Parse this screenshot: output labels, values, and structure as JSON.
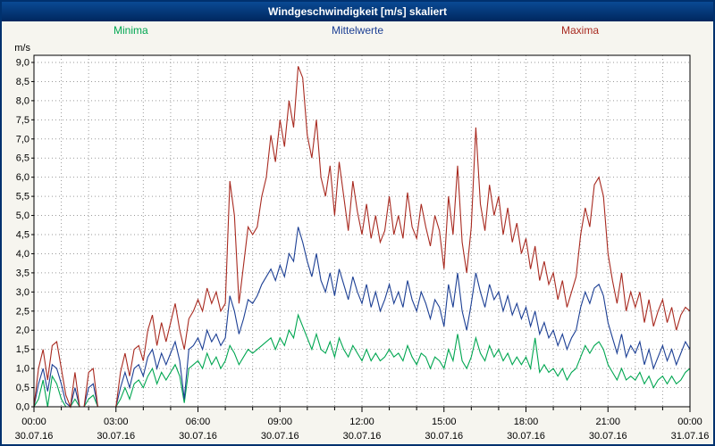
{
  "window": {
    "title": "Windgeschwindigkeit [m/s] skaliert"
  },
  "colors": {
    "title_bar": "#00316e",
    "title_text": "#ffffff",
    "window_bg": "#f6f5ef",
    "plot_bg": "#ffffff",
    "plot_border": "#000000",
    "grid": "#9a9a9a",
    "axis_text": "#000000"
  },
  "chart_data": {
    "type": "line",
    "title": "Windgeschwindigkeit [m/s] skaliert",
    "ylabel": "m/s",
    "ylim": [
      0,
      9
    ],
    "ytick_step": 0.5,
    "decimal_comma": true,
    "x_hours_total": 24,
    "x_step_minutes": 10,
    "grid": "dotted; horizontal every 0.5 m/s, vertical every hour",
    "legend_position": "top",
    "xticks": [
      {
        "time": "00:00",
        "date": "30.07.16"
      },
      {
        "time": "03:00",
        "date": "30.07.16"
      },
      {
        "time": "06:00",
        "date": "30.07.16"
      },
      {
        "time": "09:00",
        "date": "30.07.16"
      },
      {
        "time": "12:00",
        "date": "30.07.16"
      },
      {
        "time": "15:00",
        "date": "30.07.16"
      },
      {
        "time": "18:00",
        "date": "30.07.16"
      },
      {
        "time": "21:00",
        "date": "30.07.16"
      },
      {
        "time": "00:00",
        "date": "31.07.16"
      }
    ],
    "series": [
      {
        "name": "Minima",
        "color": "#00a651",
        "values": [
          0.0,
          0.2,
          0.7,
          0.0,
          0.8,
          0.6,
          0.2,
          0.0,
          0.0,
          0.2,
          0.0,
          0.0,
          0.2,
          0.3,
          0.0,
          0.0,
          0.0,
          0.0,
          0.0,
          0.2,
          0.5,
          0.2,
          0.6,
          0.7,
          0.5,
          0.8,
          1.0,
          0.6,
          0.9,
          0.7,
          0.9,
          1.1,
          0.8,
          0.1,
          1.0,
          1.1,
          1.2,
          1.0,
          1.4,
          1.1,
          1.3,
          1.0,
          1.2,
          1.6,
          1.4,
          1.1,
          1.3,
          1.5,
          1.4,
          1.5,
          1.6,
          1.7,
          1.8,
          1.5,
          1.8,
          1.6,
          2.0,
          1.8,
          2.4,
          2.1,
          1.8,
          1.5,
          1.9,
          1.5,
          1.4,
          1.7,
          1.3,
          1.8,
          1.5,
          1.3,
          1.6,
          1.4,
          1.2,
          1.5,
          1.2,
          1.4,
          1.2,
          1.3,
          1.5,
          1.3,
          1.4,
          1.2,
          1.6,
          1.3,
          1.1,
          1.4,
          1.3,
          1.0,
          1.3,
          1.2,
          1.0,
          1.5,
          1.2,
          1.9,
          1.2,
          1.0,
          1.3,
          1.8,
          1.4,
          1.2,
          1.6,
          1.3,
          1.5,
          1.2,
          1.4,
          1.1,
          1.3,
          1.1,
          1.3,
          1.0,
          1.8,
          0.9,
          1.1,
          0.9,
          1.0,
          0.8,
          1.0,
          0.7,
          0.9,
          1.0,
          1.3,
          1.6,
          1.4,
          1.6,
          1.7,
          1.5,
          1.1,
          0.9,
          0.7,
          1.0,
          0.7,
          0.8,
          0.7,
          0.9,
          0.6,
          0.8,
          0.5,
          0.7,
          0.8,
          0.6,
          0.8,
          0.6,
          0.7,
          0.9,
          1.0
        ]
      },
      {
        "name": "Mittelwerte",
        "color": "#1c3f94",
        "values": [
          0.0,
          0.6,
          1.0,
          0.4,
          1.1,
          1.0,
          0.6,
          0.1,
          0.0,
          0.5,
          0.0,
          0.0,
          0.5,
          0.6,
          0.0,
          0.0,
          0.0,
          0.0,
          0.0,
          0.5,
          0.9,
          0.5,
          1.0,
          1.1,
          0.8,
          1.3,
          1.5,
          1.0,
          1.4,
          1.1,
          1.4,
          1.7,
          1.2,
          0.2,
          1.5,
          1.6,
          1.8,
          1.5,
          2.0,
          1.7,
          1.9,
          1.6,
          1.8,
          2.9,
          2.5,
          1.9,
          2.3,
          2.8,
          2.7,
          2.9,
          3.2,
          3.4,
          3.6,
          3.3,
          3.7,
          3.4,
          4.0,
          3.8,
          4.7,
          4.3,
          3.8,
          3.4,
          4.0,
          3.3,
          3.0,
          3.5,
          2.9,
          3.6,
          3.2,
          2.8,
          3.4,
          3.0,
          2.7,
          3.2,
          2.6,
          3.0,
          2.5,
          2.8,
          3.2,
          2.7,
          3.0,
          2.6,
          3.3,
          2.8,
          2.5,
          3.0,
          2.7,
          2.3,
          2.8,
          2.6,
          2.1,
          3.2,
          2.6,
          3.5,
          2.5,
          2.0,
          2.7,
          3.5,
          3.0,
          2.6,
          3.2,
          2.8,
          3.0,
          2.5,
          2.9,
          2.4,
          2.7,
          2.3,
          2.6,
          2.1,
          2.5,
          1.9,
          2.2,
          1.8,
          2.0,
          1.6,
          1.9,
          1.5,
          1.8,
          2.0,
          2.6,
          3.0,
          2.7,
          3.1,
          3.2,
          2.9,
          2.2,
          1.8,
          1.4,
          1.9,
          1.3,
          1.6,
          1.4,
          1.7,
          1.1,
          1.5,
          1.0,
          1.3,
          1.6,
          1.2,
          1.5,
          1.1,
          1.4,
          1.7,
          1.5
        ]
      },
      {
        "name": "Maxima",
        "color": "#a82a20",
        "values": [
          0.0,
          1.0,
          1.5,
          0.7,
          1.6,
          1.7,
          1.0,
          0.3,
          0.0,
          0.9,
          0.0,
          0.0,
          0.9,
          1.0,
          0.0,
          0.0,
          0.0,
          0.0,
          0.0,
          0.9,
          1.4,
          0.8,
          1.5,
          1.6,
          1.2,
          2.0,
          2.4,
          1.6,
          2.2,
          1.7,
          2.2,
          2.7,
          2.0,
          1.5,
          2.3,
          2.5,
          2.8,
          2.5,
          3.1,
          2.7,
          3.0,
          2.5,
          2.7,
          5.9,
          5.0,
          2.7,
          3.7,
          4.7,
          4.5,
          4.7,
          5.5,
          6.0,
          7.1,
          6.4,
          7.5,
          6.8,
          8.0,
          7.3,
          8.9,
          8.6,
          7.1,
          6.5,
          7.5,
          6.0,
          5.5,
          6.3,
          5.0,
          6.4,
          5.5,
          4.6,
          5.9,
          5.1,
          4.5,
          5.3,
          4.4,
          5.0,
          4.3,
          4.6,
          5.5,
          4.5,
          5.0,
          4.4,
          5.6,
          4.7,
          4.4,
          5.3,
          4.7,
          4.2,
          5.0,
          4.6,
          3.6,
          5.5,
          4.5,
          6.3,
          4.3,
          3.5,
          4.7,
          7.3,
          5.3,
          4.6,
          5.8,
          5.0,
          5.5,
          4.5,
          5.2,
          4.3,
          4.8,
          4.0,
          4.4,
          3.6,
          4.2,
          3.3,
          3.8,
          3.2,
          3.5,
          2.8,
          3.3,
          2.6,
          3.0,
          3.4,
          4.5,
          5.2,
          4.7,
          5.8,
          6.0,
          5.5,
          4.0,
          3.3,
          2.7,
          3.5,
          2.5,
          3.0,
          2.6,
          3.0,
          2.2,
          2.8,
          2.1,
          2.5,
          2.8,
          2.2,
          2.6,
          2.0,
          2.4,
          2.6,
          2.5
        ]
      }
    ]
  }
}
